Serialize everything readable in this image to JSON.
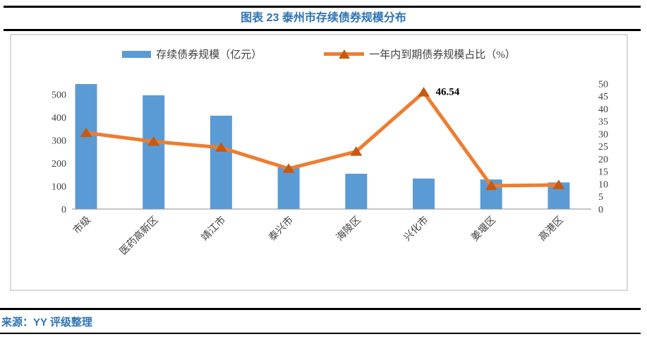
{
  "header": {
    "title": "图表 23 泰州市存续债券规模分布"
  },
  "legend": {
    "bar_label": "存续债券规模（亿元）",
    "line_label": "一年内到期债券规模占比（%）"
  },
  "footer": {
    "source": "来源：YY 评级整理"
  },
  "colors": {
    "bar": "#5B9BD5",
    "line": "#ED7D31",
    "marker": "#C55A11",
    "title_blue": "#2E74B5",
    "axis_text": "#404040",
    "axis_line": "#C6C6C6",
    "box_border": "#D9D9D9",
    "annotation": "#000000"
  },
  "chart_data": {
    "type": "bar",
    "subtype": "bar+line combo, dual axis",
    "title": "图表 23 泰州市存续债券规模分布",
    "categories": [
      "市级",
      "医药高新区",
      "靖江市",
      "泰兴市",
      "海陵区",
      "兴化市",
      "姜堰区",
      "高港区"
    ],
    "series": [
      {
        "name": "存续债券规模（亿元）",
        "type": "bar",
        "axis": "left",
        "values": [
          545,
          496,
          407,
          182,
          154,
          133,
          129,
          116
        ]
      },
      {
        "name": "一年内到期债券规模占比（%）",
        "type": "line",
        "axis": "right",
        "values": [
          30.4,
          26.9,
          24.5,
          16.1,
          22.9,
          46.54,
          9.3,
          9.6
        ]
      }
    ],
    "left_axis": {
      "min": 0,
      "max": 500,
      "step": 100,
      "ticks": [
        0,
        100,
        200,
        300,
        400,
        500
      ]
    },
    "right_axis": {
      "min": 0,
      "max": 50,
      "step": 5,
      "ticks": [
        0,
        5,
        10,
        15,
        20,
        25,
        30,
        35,
        40,
        45,
        50
      ]
    },
    "annotations": [
      {
        "series": 1,
        "category_index": 5,
        "text": "46.54"
      }
    ],
    "grid": false,
    "legend_position": "top"
  }
}
